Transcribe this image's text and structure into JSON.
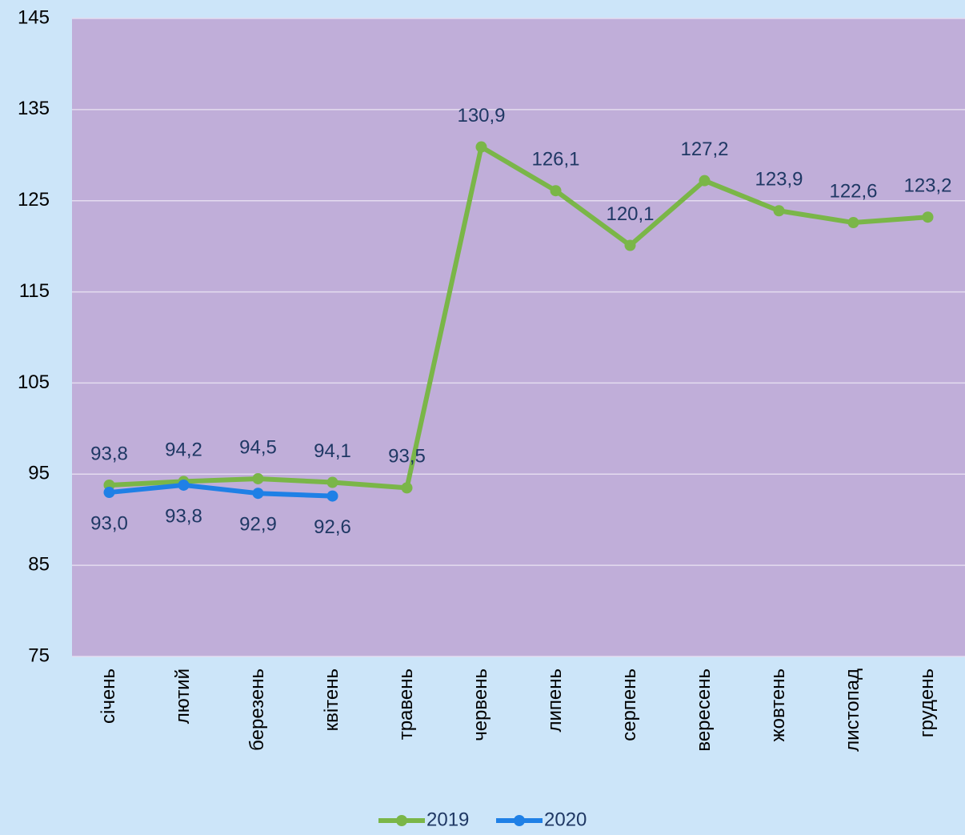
{
  "chart_data": {
    "type": "line",
    "categories": [
      "січень",
      "лютий",
      "березень",
      "квітень",
      "травень",
      "червень",
      "липень",
      "серпень",
      "вересень",
      "жовтень",
      "листопад",
      "грудень"
    ],
    "series": [
      {
        "name": "2019",
        "color": "#7ab648",
        "values": [
          93.8,
          94.2,
          94.5,
          94.1,
          93.5,
          130.9,
          126.1,
          120.1,
          127.2,
          123.9,
          122.6,
          123.2
        ],
        "value_labels": [
          "93,8",
          "94,2",
          "94,5",
          "94,1",
          "93,5",
          "130,9",
          "126,1",
          "120,1",
          "127,2",
          "123,9",
          "122,6",
          "123,2"
        ]
      },
      {
        "name": "2020",
        "color": "#1f80e6",
        "values": [
          93.0,
          93.8,
          92.9,
          92.6,
          null,
          null,
          null,
          null,
          null,
          null,
          null,
          null
        ],
        "value_labels": [
          "93,0",
          "93,8",
          "92,9",
          "92,6",
          null,
          null,
          null,
          null,
          null,
          null,
          null,
          null
        ]
      }
    ],
    "ylim": [
      75,
      145
    ],
    "yticks": [
      75,
      85,
      95,
      105,
      115,
      125,
      135,
      145
    ],
    "grid": true,
    "legend": "bottom"
  }
}
